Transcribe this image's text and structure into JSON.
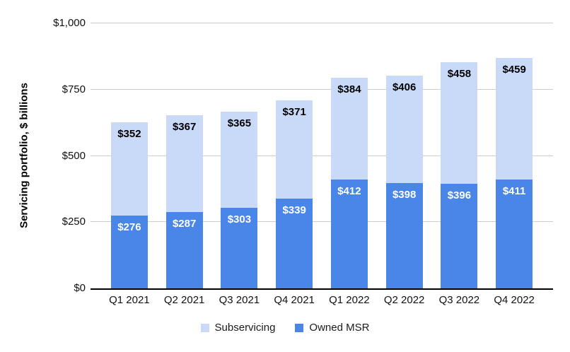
{
  "chart_data": {
    "type": "bar",
    "stacked": true,
    "title": "",
    "ylabel": "Servicing portfolio, $ billions",
    "xlabel": "",
    "categories": [
      "Q1 2021",
      "Q2 2021",
      "Q3 2021",
      "Q4 2021",
      "Q1 2022",
      "Q2 2022",
      "Q3 2022",
      "Q4 2022"
    ],
    "series": [
      {
        "name": "Subservicing",
        "color": "#c9daf8",
        "label_color": "#000000",
        "values": [
          352,
          367,
          365,
          371,
          384,
          406,
          458,
          459
        ],
        "data_labels": [
          "$352",
          "$367",
          "$365",
          "$371",
          "$384",
          "$406",
          "$458",
          "$459"
        ]
      },
      {
        "name": "Owned MSR",
        "color": "#4a86e8",
        "label_color": "#ffffff",
        "values": [
          276,
          287,
          303,
          339,
          412,
          398,
          396,
          411
        ],
        "data_labels": [
          "$276",
          "$287",
          "$303",
          "$339",
          "$412",
          "$398",
          "$396",
          "$411"
        ]
      }
    ],
    "stack_order_bottom_to_top": [
      "Owned MSR",
      "Subservicing"
    ],
    "ylim": [
      0,
      1000
    ],
    "y_ticks": [
      {
        "value": 0,
        "label": "$0"
      },
      {
        "value": 250,
        "label": "$250"
      },
      {
        "value": 500,
        "label": "$500"
      },
      {
        "value": 750,
        "label": "$750"
      },
      {
        "value": 1000,
        "label": "$1,000"
      }
    ],
    "grid": true,
    "legend_position": "bottom",
    "value_prefix": "$"
  },
  "colors": {
    "background": "#ffffff",
    "gridline": "#cccccc",
    "baseline": "#000000",
    "tick_text": "#111111",
    "category_text": "#111111",
    "legend_text": "#1a1a1a"
  }
}
